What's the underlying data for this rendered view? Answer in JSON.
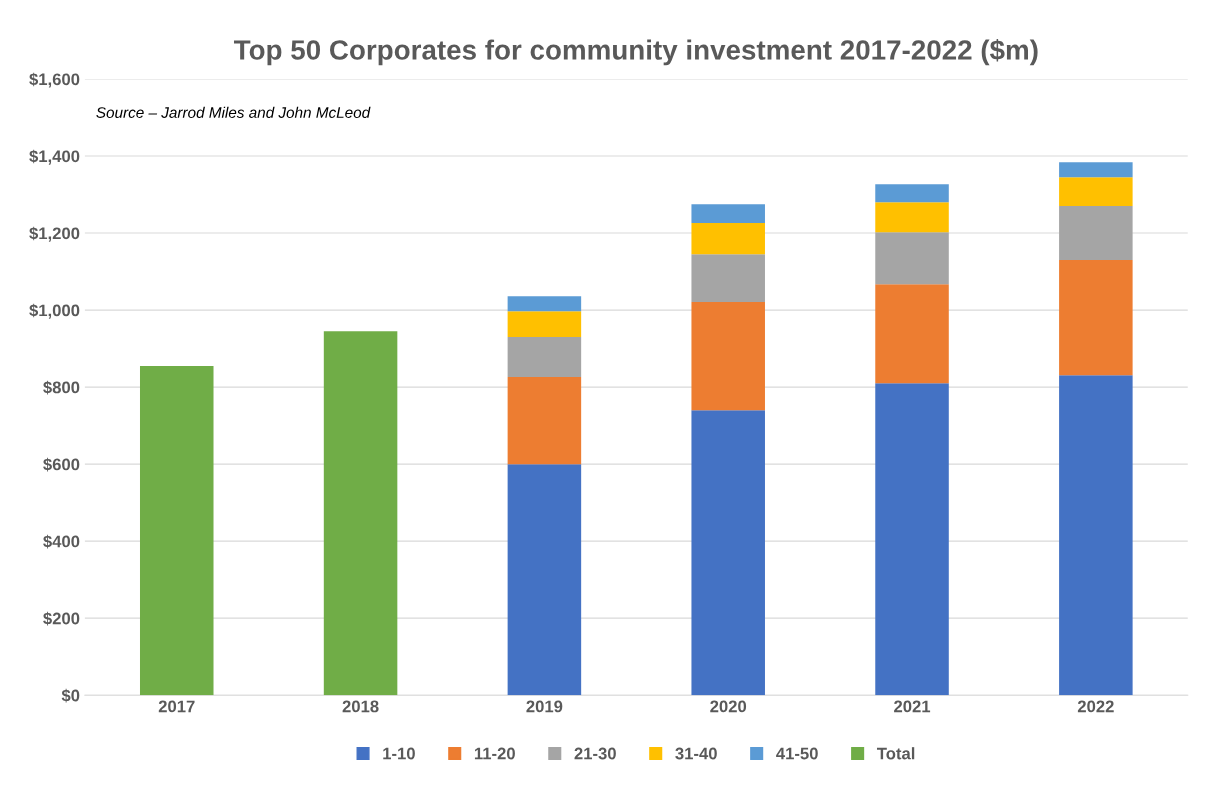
{
  "chart_data": {
    "type": "bar",
    "title": "Top 50 Corporates for community investment 2017-2022 ($m)",
    "annotations": [
      "Source – Jarrod Miles and John McLeod"
    ],
    "categories": [
      "2017",
      "2018",
      "2019",
      "2020",
      "2021",
      "2022"
    ],
    "stacked": true,
    "series": [
      {
        "name": "1-10",
        "color": "#4472c4",
        "values": [
          null,
          null,
          600,
          740,
          810,
          831
        ]
      },
      {
        "name": "11-20",
        "color": "#ed7d31",
        "values": [
          null,
          null,
          226,
          281,
          257,
          299
        ]
      },
      {
        "name": "21-30",
        "color": "#a5a5a5",
        "values": [
          null,
          null,
          104,
          124,
          135,
          140
        ]
      },
      {
        "name": "31-40",
        "color": "#ffc000",
        "values": [
          null,
          null,
          67,
          81,
          78,
          75
        ]
      },
      {
        "name": "41-50",
        "color": "#5b9bd5",
        "values": [
          null,
          null,
          39,
          49,
          47,
          39
        ]
      },
      {
        "name": "Total",
        "color": "#70ad47",
        "values": [
          855,
          945,
          null,
          null,
          null,
          null
        ]
      }
    ],
    "ylim": [
      0,
      1600
    ],
    "yticks": [
      {
        "value": 0,
        "label": "$0"
      },
      {
        "value": 200,
        "label": "$200"
      },
      {
        "value": 400,
        "label": "$400"
      },
      {
        "value": 600,
        "label": "$600"
      },
      {
        "value": 800,
        "label": "$800"
      },
      {
        "value": 1000,
        "label": "$1,000"
      },
      {
        "value": 1200,
        "label": "$1,200"
      },
      {
        "value": 1400,
        "label": "$1,400"
      },
      {
        "value": 1600,
        "label": "$1,600"
      }
    ],
    "grid": "y",
    "legend": "bottom"
  }
}
